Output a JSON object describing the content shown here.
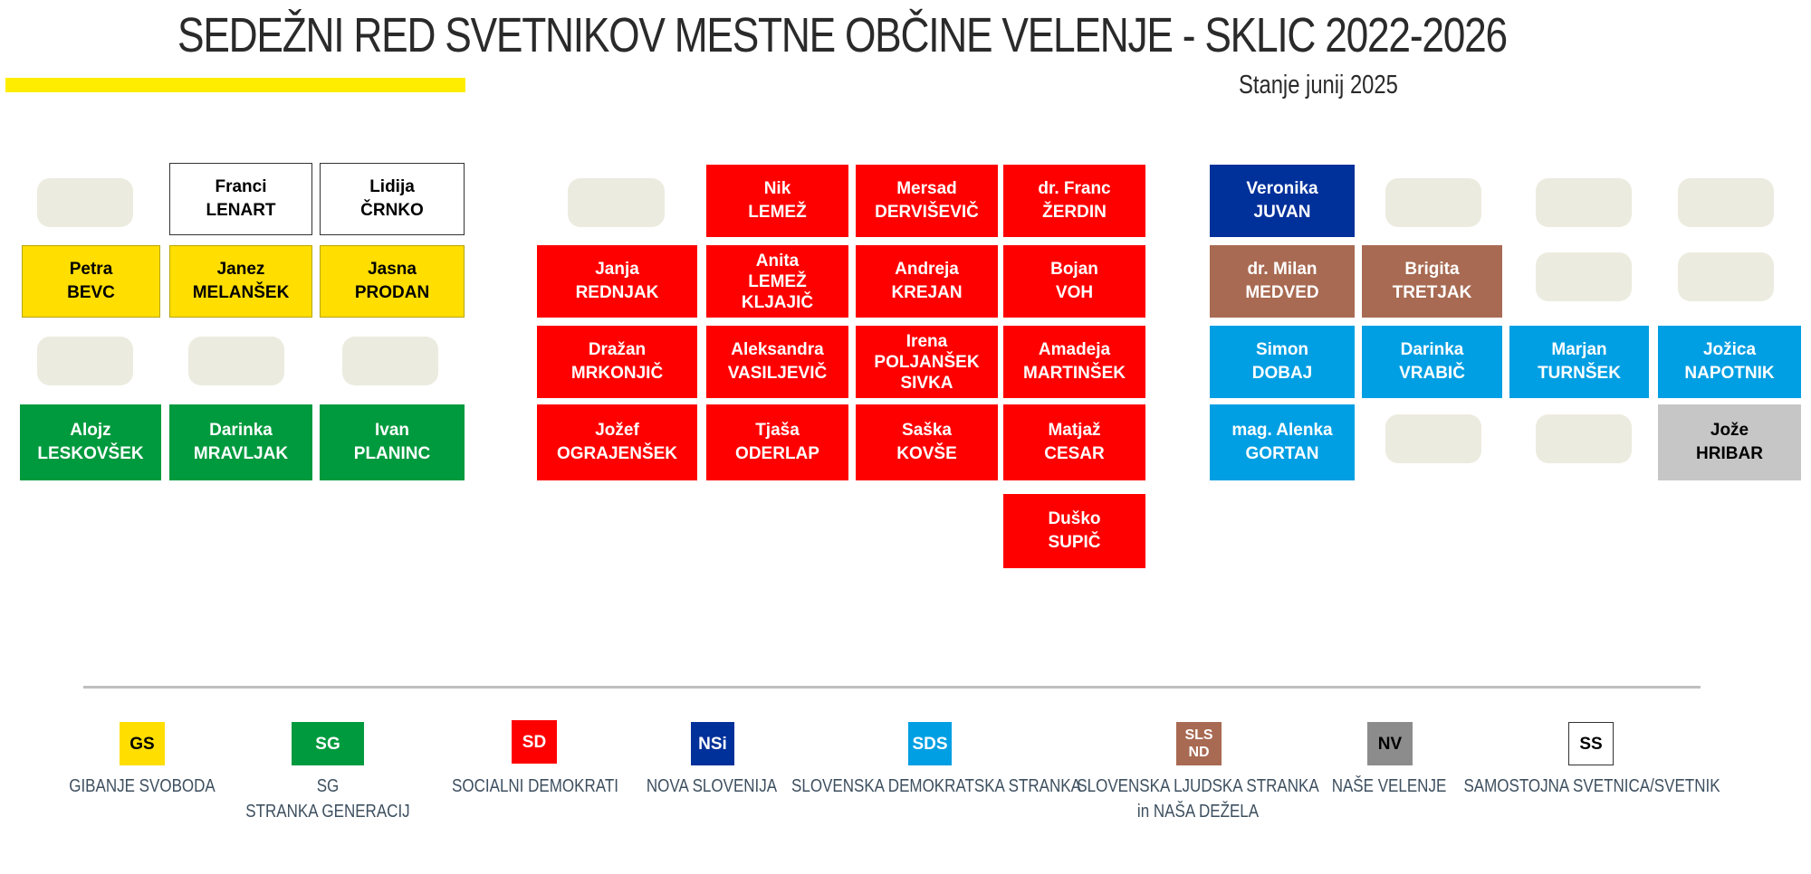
{
  "title": "SEDEŽNI RED SVETNIKOV MESTNE OBČINE VELENJE - SKLIC 2022-2026",
  "status": "Stanje junij 2025",
  "colors": {
    "GS": "#ffde00",
    "SG": "#009a3e",
    "SD": "#ff0000",
    "NSi": "#00309a",
    "SDS": "#009fe3",
    "SLS_ND": "#a86a52",
    "NV": "#c6c6c6",
    "SS": "#ffffff",
    "empty": "#ecebdf",
    "title_bar": "#ffed00"
  },
  "seats": [
    {
      "first": "Franci",
      "last": "LENART",
      "party": "SS"
    },
    {
      "first": "Lidija",
      "last": "ČRNKO",
      "party": "SS"
    },
    {
      "first": "Petra",
      "last": "BEVC",
      "party": "GS"
    },
    {
      "first": "Janez",
      "last": "MELANŠEK",
      "party": "GS"
    },
    {
      "first": "Jasna",
      "last": "PRODAN",
      "party": "GS"
    },
    {
      "first": "Alojz",
      "last": "LESKOVŠEK",
      "party": "SG"
    },
    {
      "first": "Darinka",
      "last": "MRAVLJAK",
      "party": "SG"
    },
    {
      "first": "Ivan",
      "last": "PLANINC",
      "party": "SG"
    },
    {
      "first": "Nik",
      "last": "LEMEŽ",
      "party": "SD"
    },
    {
      "first": "Mersad",
      "last": "DERVIŠEVIČ",
      "party": "SD"
    },
    {
      "first": "dr. Franc",
      "last": "ŽERDIN",
      "party": "SD"
    },
    {
      "first": "Janja",
      "last": "REDNJAK",
      "party": "SD"
    },
    {
      "first": "Anita",
      "last": "LEMEŽ",
      "last2": "KLJAJIČ",
      "party": "SD"
    },
    {
      "first": "Andreja",
      "last": "KREJAN",
      "party": "SD"
    },
    {
      "first": "Bojan",
      "last": "VOH",
      "party": "SD"
    },
    {
      "first": "Dražan",
      "last": "MRKONJIČ",
      "party": "SD"
    },
    {
      "first": "Aleksandra",
      "last": "VASILJEVIČ",
      "party": "SD"
    },
    {
      "first": "Irena",
      "last": "POLJANŠEK",
      "last2": "SIVKA",
      "party": "SD"
    },
    {
      "first": "Amadeja",
      "last": "MARTINŠEK",
      "party": "SD"
    },
    {
      "first": "Jožef",
      "last": "OGRAJENŠEK",
      "party": "SD"
    },
    {
      "first": "Tjaša",
      "last": "ODERLAP",
      "party": "SD"
    },
    {
      "first": "Saška",
      "last": "KOVŠE",
      "party": "SD"
    },
    {
      "first": "Matjaž",
      "last": "CESAR",
      "party": "SD"
    },
    {
      "first": "Duško",
      "last": "SUPIČ",
      "party": "SD"
    },
    {
      "first": "Veronika",
      "last": "JUVAN",
      "party": "NSi"
    },
    {
      "first": "dr. Milan",
      "last": "MEDVED",
      "party": "SLS_ND"
    },
    {
      "first": "Brigita",
      "last": "TRETJAK",
      "party": "SLS_ND"
    },
    {
      "first": "Simon",
      "last": "DOBAJ",
      "party": "SDS"
    },
    {
      "first": "Darinka",
      "last": "VRABIČ",
      "party": "SDS"
    },
    {
      "first": "Marjan",
      "last": "TURNŠEK",
      "party": "SDS"
    },
    {
      "first": "Jožica",
      "last": "NAPOTNIK",
      "party": "SDS"
    },
    {
      "first": "mag. Alenka",
      "last": "GORTAN",
      "party": "SDS"
    },
    {
      "first": "Jože",
      "last": "HRIBAR",
      "party": "NV"
    }
  ],
  "legend": [
    {
      "code": "GS",
      "abbr": "GS",
      "abbr2": "",
      "name": "GIBANJE SVOBODA",
      "name2": ""
    },
    {
      "code": "SG",
      "abbr": "SG",
      "abbr2": "",
      "name": "SG",
      "name2": "STRANKA GENERACIJ"
    },
    {
      "code": "SD",
      "abbr": "SD",
      "abbr2": "",
      "name": "SOCIALNI DEMOKRATI",
      "name2": ""
    },
    {
      "code": "NSi",
      "abbr": "NSi",
      "abbr2": "",
      "name": "NOVA SLOVENIJA",
      "name2": ""
    },
    {
      "code": "SDS",
      "abbr": "SDS",
      "abbr2": "",
      "name": "SLOVENSKA DEMOKRATSKA STRANKA",
      "name2": ""
    },
    {
      "code": "SLS_ND",
      "abbr": "SLS",
      "abbr2": "ND",
      "name": "SLOVENSKA LJUDSKA STRANKA",
      "name2": "in NAŠA DEŽELA"
    },
    {
      "code": "NV",
      "abbr": "NV",
      "abbr2": "",
      "name": "NAŠE VELENJE",
      "name2": ""
    },
    {
      "code": "SS",
      "abbr": "SS",
      "abbr2": "",
      "name": "SAMOSTOJNA SVETNICA/SVETNIK",
      "name2": ""
    }
  ]
}
